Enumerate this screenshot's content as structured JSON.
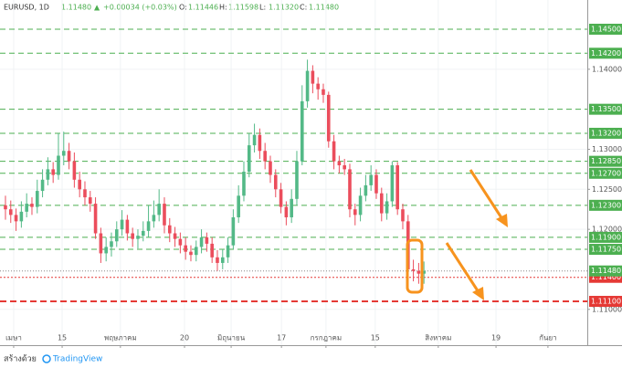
{
  "header": {
    "symbol": "EURUSD, 1D",
    "last": "1.11480",
    "arrow": "▲",
    "change": "+0.00034 (+0.03%)",
    "ohlc": [
      {
        "label": "O:",
        "value": "1.11446"
      },
      {
        "label": "H:",
        "value": "1.11598"
      },
      {
        "label": "L:",
        "value": "1.11320"
      },
      {
        "label": "C:",
        "value": "1.11480"
      }
    ]
  },
  "footer": {
    "text": "สร้างด้วย",
    "brand": "TradingView"
  },
  "chart_data": {
    "type": "candlestick",
    "open": [
      1.123,
      1.1225,
      1.1218,
      1.121,
      1.1222,
      1.1232,
      1.1228,
      1.1248,
      1.1262,
      1.1275,
      1.1268,
      1.1292,
      1.1298,
      1.1285,
      1.1262,
      1.125,
      1.124,
      1.1232,
      1.1195,
      1.117,
      1.1178,
      1.1185,
      1.12,
      1.1212,
      1.1195,
      1.1188,
      1.1192,
      1.1198,
      1.121,
      1.1218,
      1.1232,
      1.1205,
      1.1195,
      1.1188,
      1.118,
      1.1172,
      1.1168,
      1.1178,
      1.119,
      1.1182,
      1.1165,
      1.1158,
      1.1165,
      1.118,
      1.1215,
      1.1242,
      1.1272,
      1.1305,
      1.1318,
      1.1298,
      1.1285,
      1.1268,
      1.125,
      1.1228,
      1.1215,
      1.1238,
      1.1285,
      1.136,
      1.1398,
      1.1382,
      1.1375,
      1.1368,
      1.131,
      1.1285,
      1.128,
      1.1275,
      1.1225,
      1.1218,
      1.1242,
      1.1255,
      1.1268,
      1.1245,
      1.122,
      1.1235,
      1.128,
      1.1225,
      1.121,
      1.115,
      1.1148,
      1.11446
    ],
    "high": [
      1.1242,
      1.1236,
      1.1226,
      1.1235,
      1.1245,
      1.124,
      1.1262,
      1.1275,
      1.129,
      1.1284,
      1.132,
      1.1322,
      1.1308,
      1.1296,
      1.1272,
      1.126,
      1.1248,
      1.124,
      1.1202,
      1.119,
      1.1196,
      1.121,
      1.1224,
      1.1218,
      1.1202,
      1.12,
      1.121,
      1.123,
      1.1236,
      1.125,
      1.124,
      1.1214,
      1.1203,
      1.1196,
      1.119,
      1.118,
      1.1186,
      1.12,
      1.1196,
      1.119,
      1.1174,
      1.1175,
      1.119,
      1.1225,
      1.1255,
      1.1285,
      1.132,
      1.1332,
      1.1326,
      1.1308,
      1.1292,
      1.1275,
      1.1258,
      1.1235,
      1.125,
      1.1298,
      1.138,
      1.1412,
      1.1405,
      1.139,
      1.1382,
      1.1372,
      1.1318,
      1.1292,
      1.1288,
      1.1282,
      1.1232,
      1.1252,
      1.1268,
      1.128,
      1.1275,
      1.1252,
      1.1245,
      1.1285,
      1.1284,
      1.1232,
      1.1218,
      1.1162,
      1.1158,
      1.11598
    ],
    "low": [
      1.1212,
      1.1208,
      1.1198,
      1.1202,
      1.1215,
      1.1218,
      1.122,
      1.124,
      1.1255,
      1.1258,
      1.1262,
      1.128,
      1.1275,
      1.1252,
      1.124,
      1.123,
      1.1222,
      1.1188,
      1.1158,
      1.116,
      1.1166,
      1.1178,
      1.1192,
      1.1186,
      1.1178,
      1.1176,
      1.1185,
      1.119,
      1.1202,
      1.121,
      1.1195,
      1.1184,
      1.1178,
      1.117,
      1.1162,
      1.116,
      1.116,
      1.117,
      1.1172,
      1.1158,
      1.1148,
      1.115,
      1.1158,
      1.1175,
      1.1208,
      1.1235,
      1.1265,
      1.1296,
      1.1288,
      1.1275,
      1.1258,
      1.124,
      1.122,
      1.1205,
      1.1208,
      1.123,
      1.128,
      1.1352,
      1.137,
      1.1362,
      1.1358,
      1.1302,
      1.1275,
      1.127,
      1.1268,
      1.1215,
      1.1205,
      1.121,
      1.1235,
      1.1248,
      1.1238,
      1.121,
      1.1212,
      1.1228,
      1.1218,
      1.12,
      1.114,
      1.1135,
      1.1132,
      1.1132
    ],
    "close": [
      1.1225,
      1.1218,
      1.121,
      1.1222,
      1.1232,
      1.1228,
      1.1248,
      1.1262,
      1.1275,
      1.1268,
      1.1292,
      1.1298,
      1.1285,
      1.1262,
      1.125,
      1.124,
      1.1232,
      1.1195,
      1.117,
      1.1178,
      1.1185,
      1.12,
      1.1212,
      1.1195,
      1.1188,
      1.1192,
      1.1198,
      1.121,
      1.1218,
      1.1232,
      1.1205,
      1.1195,
      1.1188,
      1.118,
      1.1172,
      1.1168,
      1.1178,
      1.119,
      1.1182,
      1.1165,
      1.1158,
      1.1165,
      1.118,
      1.1215,
      1.1242,
      1.1272,
      1.1305,
      1.1318,
      1.1298,
      1.1285,
      1.1268,
      1.125,
      1.1228,
      1.1215,
      1.1238,
      1.1285,
      1.136,
      1.1398,
      1.1382,
      1.1375,
      1.1368,
      1.131,
      1.1285,
      1.128,
      1.1275,
      1.1225,
      1.1218,
      1.1242,
      1.1255,
      1.1268,
      1.1245,
      1.122,
      1.1235,
      1.128,
      1.1225,
      1.121,
      1.115,
      1.1148,
      1.11446,
      1.1148
    ],
    "up_color": "#53b987",
    "down_color": "#eb4d5c",
    "xlim": [
      -1.03,
      109.83
    ],
    "ylim": [
      1.10815,
      1.14637
    ],
    "xticks": [
      {
        "value": 1.55,
        "label": "เมษา"
      },
      {
        "value": 10.7,
        "label": "15"
      },
      {
        "value": 21.7,
        "label": "พฤษภาคม"
      },
      {
        "value": 33.8,
        "label": "20"
      },
      {
        "value": 42.6,
        "label": "มิถุนายน"
      },
      {
        "value": 52.1,
        "label": "17"
      },
      {
        "value": 60.5,
        "label": "กรกฎาคม"
      },
      {
        "value": 69.8,
        "label": "15"
      },
      {
        "value": 81.7,
        "label": "สิงหาคม"
      },
      {
        "value": 92.6,
        "label": "19"
      },
      {
        "value": 102.4,
        "label": "กันยา"
      }
    ],
    "yticks": [
      {
        "value": 1.14,
        "label": "1.14000"
      },
      {
        "value": 1.13,
        "label": "1.13000"
      },
      {
        "value": 1.125,
        "label": "1.12500"
      },
      {
        "value": 1.12,
        "label": "1.12000"
      },
      {
        "value": 1.11,
        "label": "1.11000"
      }
    ],
    "grid": true,
    "levels": [
      {
        "value": 1.145,
        "label": "1.14500",
        "color": "#4caf50",
        "style": "dashed"
      },
      {
        "value": 1.142,
        "label": "1.14200",
        "color": "#4caf50",
        "style": "dashed"
      },
      {
        "value": 1.135,
        "label": "1.13500",
        "color": "#4caf50",
        "style": "dashed"
      },
      {
        "value": 1.132,
        "label": "1.13200",
        "color": "#4caf50",
        "style": "dashed"
      },
      {
        "value": 1.1285,
        "label": "1.12850",
        "color": "#4caf50",
        "style": "dashed"
      },
      {
        "value": 1.127,
        "label": "1.12700",
        "color": "#4caf50",
        "style": "dashed"
      },
      {
        "value": 1.123,
        "label": "1.12300",
        "color": "#4caf50",
        "style": "dashed"
      },
      {
        "value": 1.119,
        "label": "1.11900",
        "color": "#4caf50",
        "style": "dashed"
      },
      {
        "value": 1.1175,
        "label": "1.11750",
        "color": "#4caf50",
        "style": "dashed"
      },
      {
        "value": 1.114,
        "label": "1.11400",
        "color": "#e53935",
        "style": "dotted"
      },
      {
        "value": 1.111,
        "label": "1.11100",
        "color": "#e53935",
        "style": "bold"
      }
    ],
    "last_price": {
      "value": 1.1148,
      "label": "1.11480",
      "color": "#4caf50"
    }
  }
}
